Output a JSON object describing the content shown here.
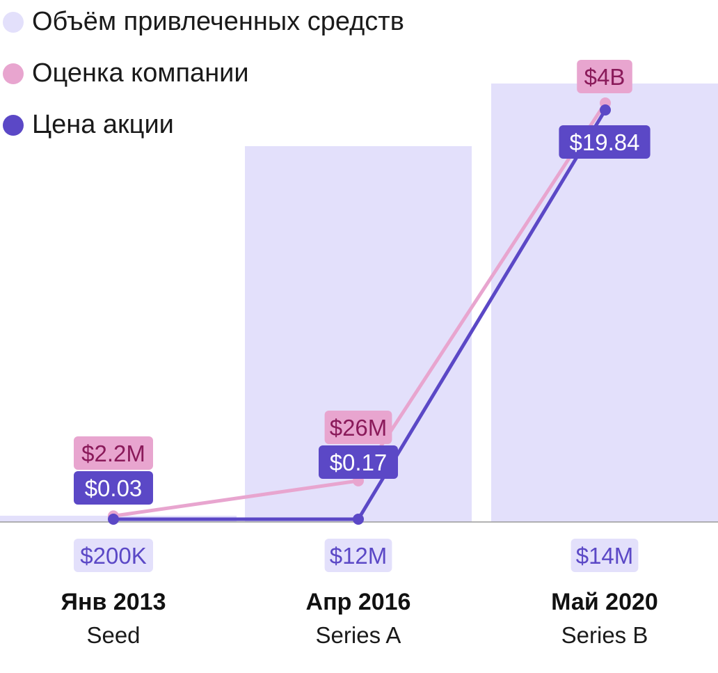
{
  "legend": [
    {
      "label": "Объём привлеченных средств",
      "color": "#e3e0fb"
    },
    {
      "label": "Оценка компании",
      "color": "#e8a5cf"
    },
    {
      "label": "Цена акции",
      "color": "#5b48c6"
    }
  ],
  "chart_data": {
    "type": "bar",
    "categories": [
      "Янв 2013",
      "Апр 2016",
      "Май 2020"
    ],
    "subcategories": [
      "Seed",
      "Series A",
      "Series B"
    ],
    "series": [
      {
        "name": "Объём привлеченных средств",
        "values": [
          0.2,
          12,
          14
        ],
        "labels": [
          "$200K",
          "$12M",
          "$14M"
        ],
        "unit": "$M"
      },
      {
        "name": "Оценка компании",
        "values": [
          2.2,
          26,
          4000
        ],
        "labels": [
          "$2.2M",
          "$26M",
          "$4B"
        ],
        "unit": "$M"
      },
      {
        "name": "Цена акции",
        "values": [
          0.03,
          0.17,
          19.84
        ],
        "labels": [
          "$0.03",
          "$0.17",
          "$19.84"
        ],
        "unit": "$"
      }
    ],
    "grid": false,
    "legend_position": "top-left"
  },
  "colors": {
    "bar": "#e3e0fb",
    "valuation_line": "#e8a5cf",
    "valuation_label_bg": "#e8a5cf",
    "valuation_label_text": "#8a1a5a",
    "price_line": "#5b48c6",
    "price_label_bg": "#5b48c6",
    "price_label_text": "#ffffff",
    "funding_label_text": "#5b48c6",
    "axis": "#999999"
  }
}
